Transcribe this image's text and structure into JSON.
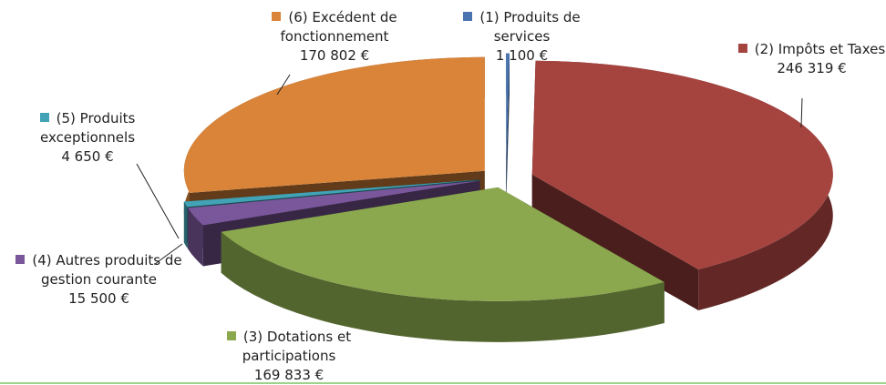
{
  "chart_data": {
    "type": "pie3d",
    "categories": [
      "(1) Produits de services",
      "(2) Impôts et Taxes",
      "(3) Dotations et participations",
      "(4) Autres produits de gestion courante",
      "(5) Produits exceptionnels",
      "(6) Excédent de fonctionnement"
    ],
    "values": [
      1100,
      246319,
      169833,
      15500,
      4650,
      170802
    ],
    "value_labels": [
      "1 100 €",
      "246 319 €",
      "169 833 €",
      "15 500 €",
      "4 650 €",
      "170 802 €"
    ],
    "colors": [
      "#4a74b0",
      "#a5433f",
      "#8ba84f",
      "#7a579a",
      "#41a3b5",
      "#d98439"
    ]
  }
}
